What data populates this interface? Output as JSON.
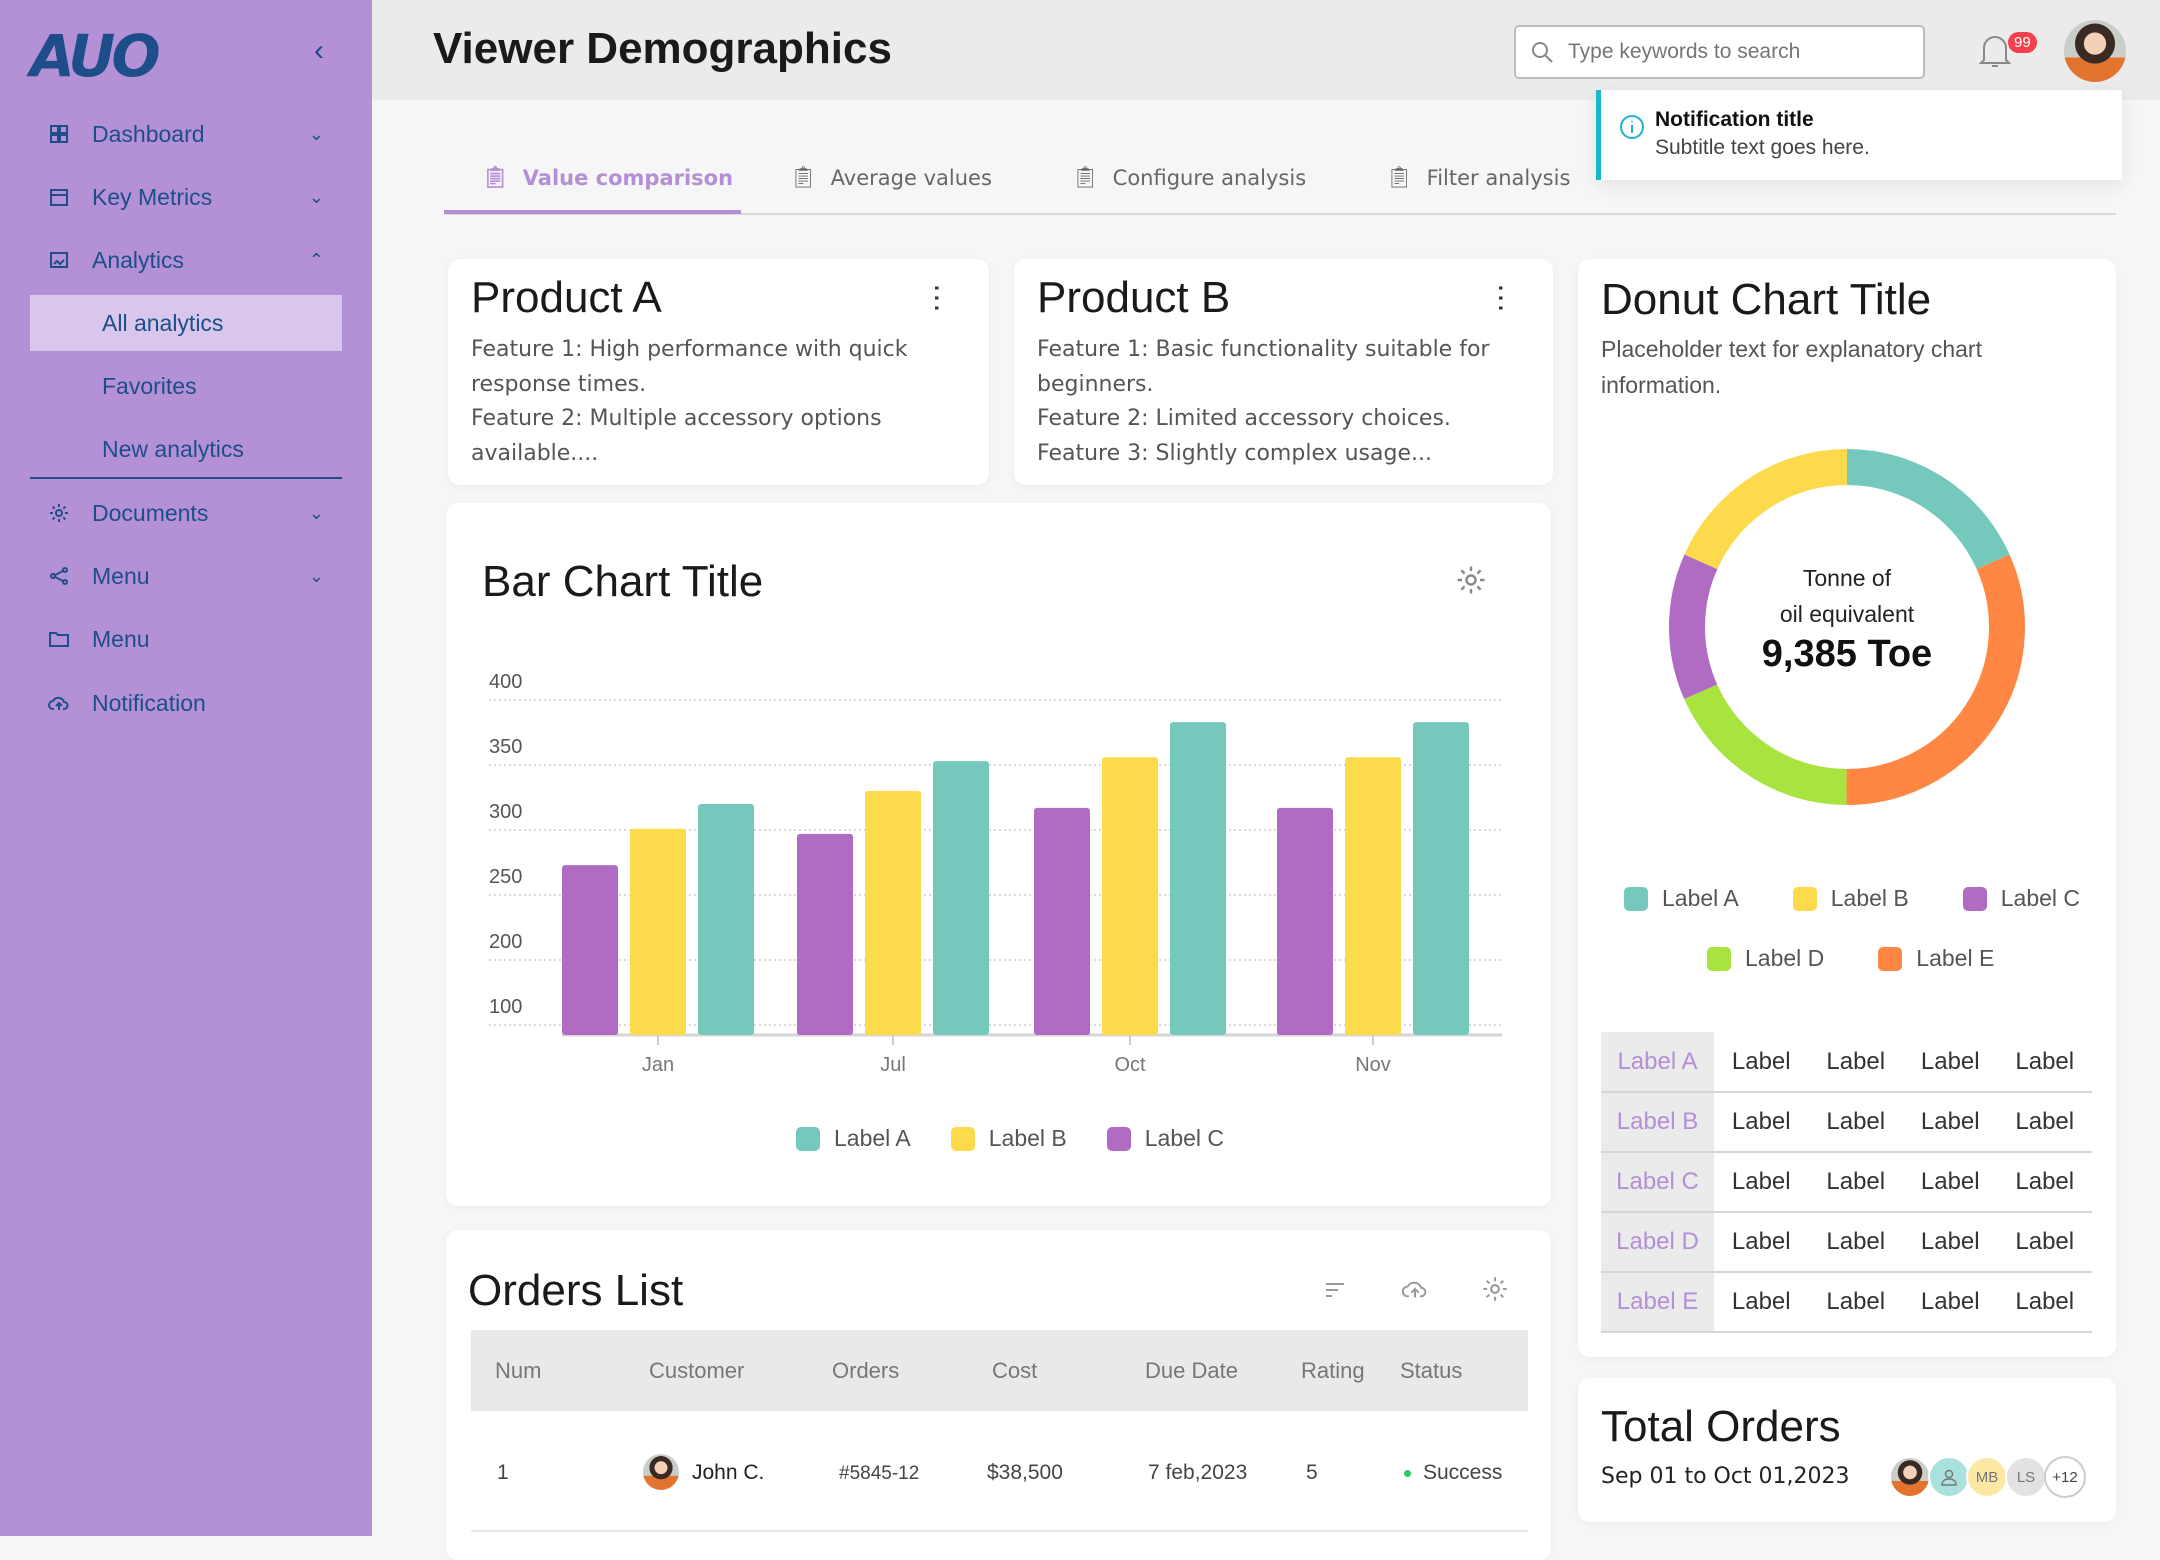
{
  "sidebar": {
    "logo": "AUO",
    "items": [
      {
        "label": "Dashboard",
        "icon": "grid-icon"
      },
      {
        "label": "Key Metrics",
        "icon": "calendar-icon"
      },
      {
        "label": "Analytics",
        "icon": "image-icon"
      },
      {
        "label": "All analytics"
      },
      {
        "label": "Favorites"
      },
      {
        "label": "New analytics"
      },
      {
        "label": "Documents",
        "icon": "gear-icon"
      },
      {
        "label": "Menu",
        "icon": "share-icon"
      },
      {
        "label": "Menu",
        "icon": "folder-icon"
      },
      {
        "label": "Notification",
        "icon": "cloud-upload-icon"
      }
    ]
  },
  "header": {
    "title": "Viewer Demographics",
    "search_placeholder": "Type keywords to search",
    "notification_count": "99"
  },
  "notification": {
    "title": "Notification title",
    "subtitle": "Subtitle text goes here."
  },
  "tabs": [
    "Value comparison",
    "Average values",
    "Configure analysis",
    "Filter analysis"
  ],
  "products": [
    {
      "title": "Product A",
      "lines": [
        "Feature 1: High performance with quick response times.",
        "Feature 2: Multiple accessory options available...."
      ]
    },
    {
      "title": "Product B",
      "lines": [
        "Feature 1: Basic functionality suitable for beginners.",
        "Feature 2: Limited accessory choices.",
        "Feature 3: Slightly complex usage..."
      ]
    }
  ],
  "colors": {
    "teal": "#74c9bc",
    "yellow": "#fdd94c",
    "purple": "#b06bc2",
    "green": "#a8e33f",
    "orange": "#ff8743",
    "accent": "#b48fd6"
  },
  "chart_data": [
    {
      "type": "bar",
      "title": "Bar Chart Title",
      "categories": [
        "Jan",
        "Jul",
        "Oct",
        "Nov"
      ],
      "yticks": [
        400,
        350,
        300,
        250,
        200,
        100
      ],
      "series": [
        {
          "name": "Label C",
          "color": "#b06bc2",
          "values": [
            273,
            297,
            317,
            317
          ]
        },
        {
          "name": "Label B",
          "color": "#fdd94c",
          "values": [
            301,
            330,
            356,
            356
          ]
        },
        {
          "name": "Label A",
          "color": "#74c9bc",
          "values": [
            320,
            353,
            383,
            383
          ]
        }
      ],
      "legend": [
        "Label A",
        "Label B",
        "Label C"
      ],
      "grid": true
    },
    {
      "type": "pie",
      "title": "Donut Chart Title",
      "subtitle": "Placeholder text for explanatory chart information.",
      "center_label_1": "Tonne of",
      "center_label_2": "oil equivalent",
      "center_value": "9,385 Toe",
      "slices": [
        {
          "name": "Label A",
          "value": 18.3,
          "color": "#74c9bc"
        },
        {
          "name": "Label E",
          "value": 31.7,
          "color": "#ff8743"
        },
        {
          "name": "Label D",
          "value": 18.3,
          "color": "#a8e33f"
        },
        {
          "name": "Label C",
          "value": 13.3,
          "color": "#b06bc2"
        },
        {
          "name": "Label B",
          "value": 18.3,
          "color": "#fdd94c"
        }
      ],
      "legend": [
        "Label A",
        "Label B",
        "Label C",
        "Label D",
        "Label E"
      ]
    }
  ],
  "label_table": {
    "rows": [
      {
        "head": "Label A",
        "cells": [
          "Label",
          "Label",
          "Label",
          "Label"
        ]
      },
      {
        "head": "Label B",
        "cells": [
          "Label",
          "Label",
          "Label",
          "Label"
        ]
      },
      {
        "head": "Label C",
        "cells": [
          "Label",
          "Label",
          "Label",
          "Label"
        ]
      },
      {
        "head": "Label D",
        "cells": [
          "Label",
          "Label",
          "Label",
          "Label"
        ]
      },
      {
        "head": "Label E",
        "cells": [
          "Label",
          "Label",
          "Label",
          "Label"
        ]
      }
    ]
  },
  "orders": {
    "title": "Orders List",
    "columns": [
      "Num",
      "Customer",
      "Orders",
      "Cost",
      "Due Date",
      "Rating",
      "Status"
    ],
    "rows": [
      {
        "num": "1",
        "customer": "John C.",
        "order": "#5845-12",
        "cost": "$38,500",
        "due": "7 feb,2023",
        "rating": "5",
        "status": "Success"
      }
    ]
  },
  "total_orders": {
    "title": "Total Orders",
    "range": "Sep 01 to Oct 01,2023",
    "avatars": [
      "MB",
      "LS",
      "+12"
    ]
  }
}
